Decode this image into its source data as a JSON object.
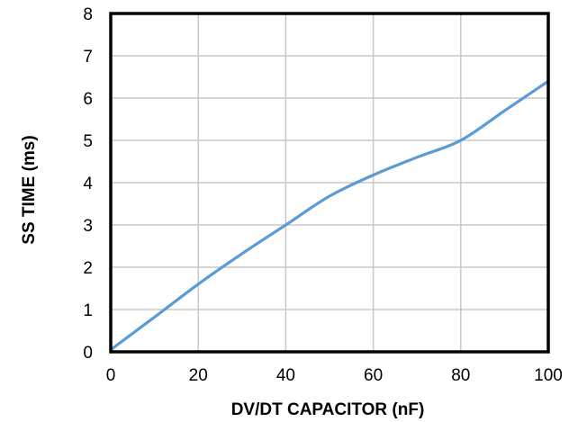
{
  "chart_data": {
    "type": "line",
    "title": "",
    "xlabel": "DV/DT CAPACITOR (nF)",
    "ylabel": "SS TIME (ms)",
    "xlim": [
      0,
      100
    ],
    "ylim": [
      0,
      8
    ],
    "x_ticks": [
      0,
      20,
      40,
      60,
      80,
      100
    ],
    "y_ticks": [
      0,
      1,
      2,
      3,
      4,
      5,
      6,
      7,
      8
    ],
    "grid": true,
    "legend": "none",
    "line_color": "#5b9bd5",
    "series": [
      {
        "x": [
          0,
          10,
          20,
          30,
          40,
          50,
          60,
          70,
          80,
          90,
          100
        ],
        "y": [
          0.05,
          0.82,
          1.6,
          2.32,
          3.0,
          3.68,
          4.18,
          4.6,
          5.0,
          5.7,
          6.4
        ]
      }
    ]
  }
}
